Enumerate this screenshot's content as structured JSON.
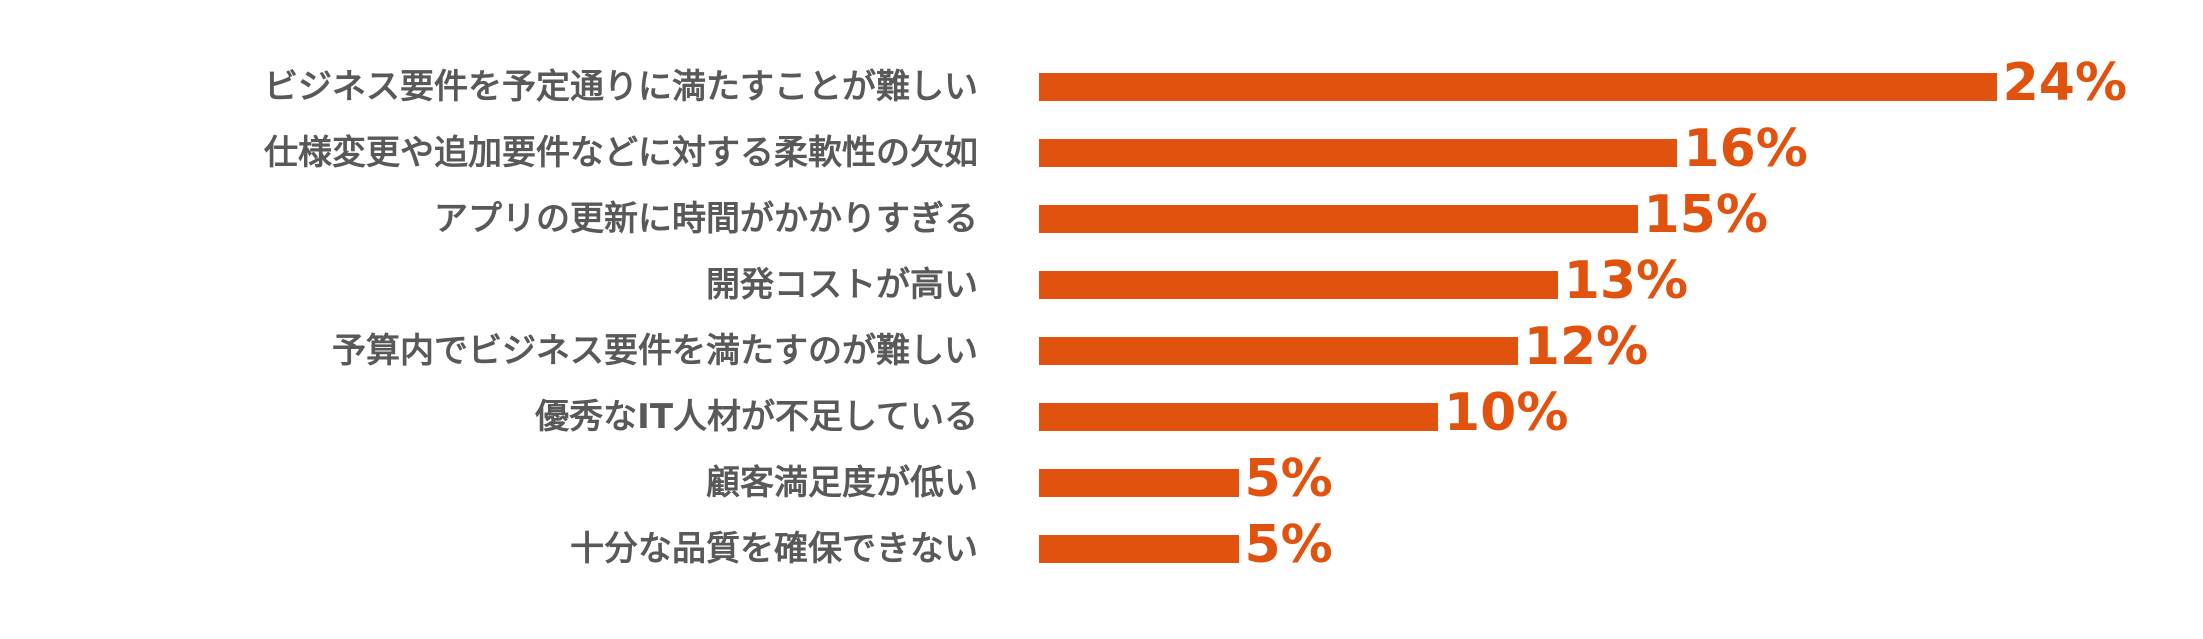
{
  "chart_data": {
    "type": "bar",
    "orientation": "horizontal",
    "categories": [
      "ビジネス要件を予定通りに満たすことが難しい",
      "仕様変更や追加要件などに対する柔軟性の欠如",
      "アプリの更新に時間がかかりすぎる",
      "開発コストが高い",
      "予算内でビジネス要件を満たすのが難しい",
      "優秀なIT人材が不足している",
      "顧客満足度が低い",
      "十分な品質を確保できない"
    ],
    "values": [
      24,
      16,
      15,
      13,
      12,
      10,
      5,
      5
    ],
    "value_labels": [
      "24%",
      "16%",
      "15%",
      "13%",
      "12%",
      "10%",
      "5%",
      "5%"
    ],
    "unit": "%",
    "grid": false,
    "legend": "none"
  },
  "colors": {
    "bar": "#E2520F",
    "value_text": "#E2520F",
    "category_text": "#595959"
  }
}
